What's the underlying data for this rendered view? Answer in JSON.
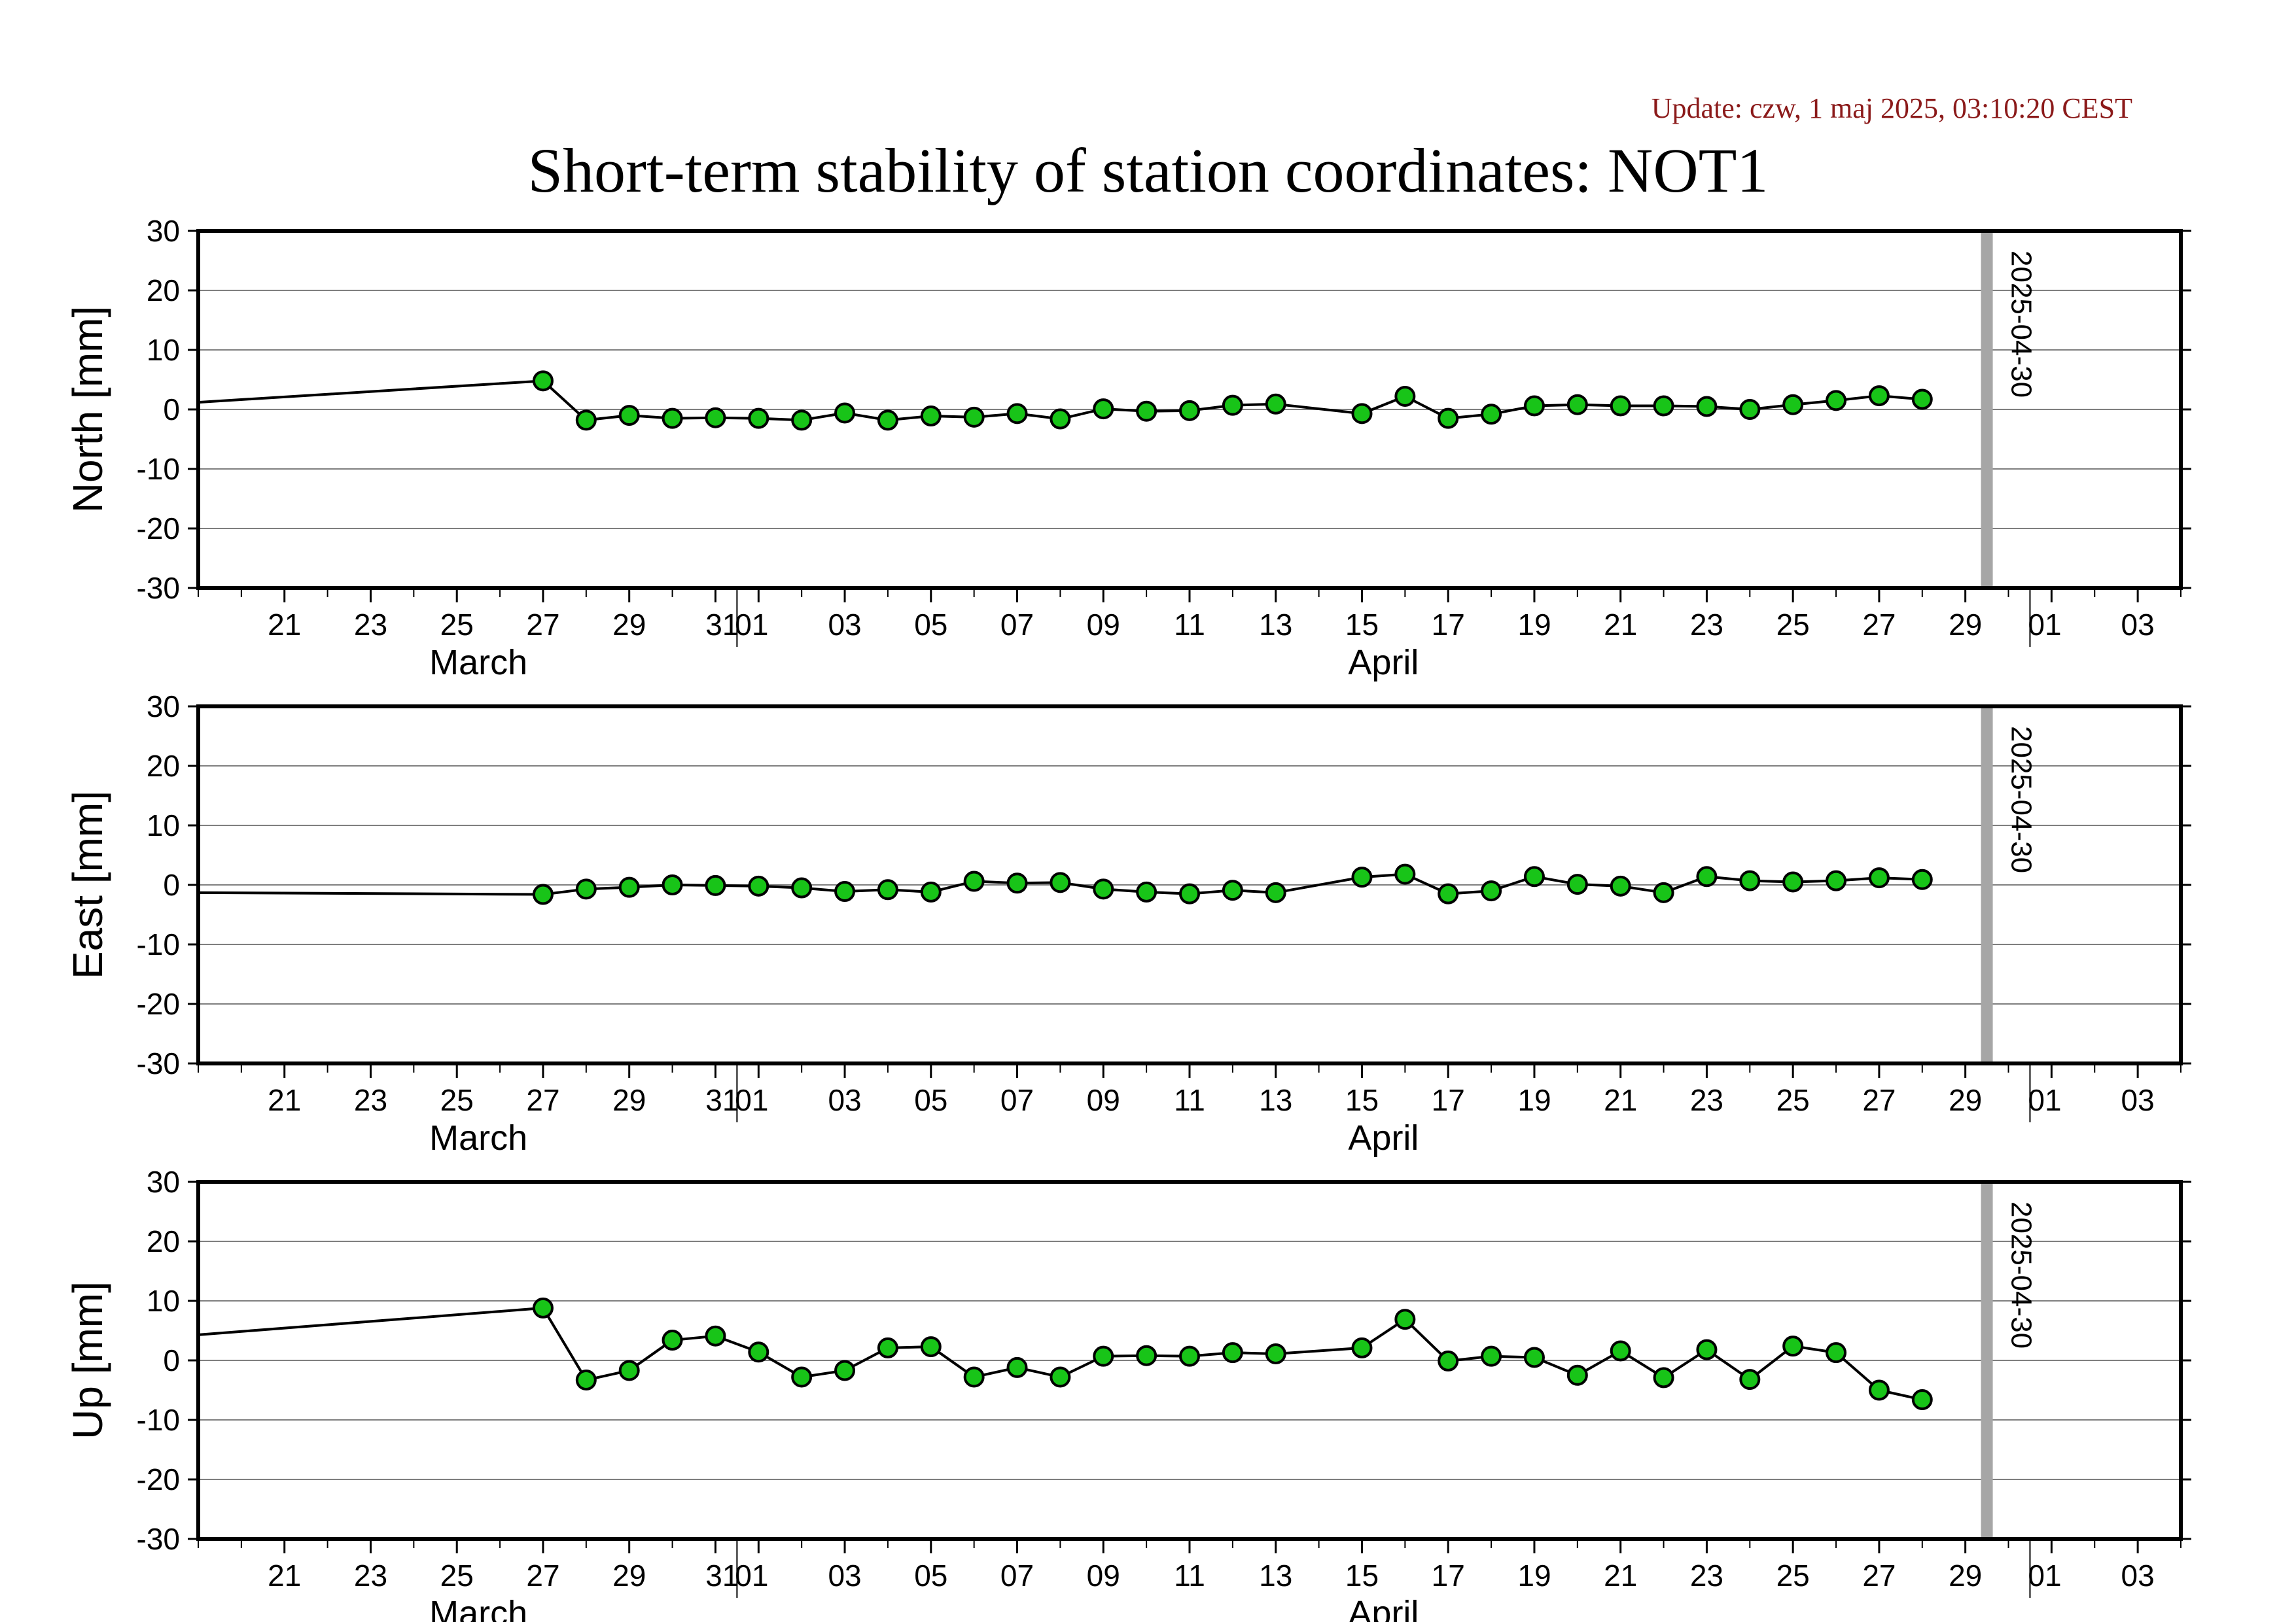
{
  "header": {
    "update": "Update: czw, 1 maj 2025, 03:10:20 CEST",
    "title": "Short-term stability of station coordinates: NOT1"
  },
  "colors": {
    "marker_fill": "#18c418",
    "marker_stroke": "#000000",
    "line": "#000000",
    "grid": "#7f7f7f",
    "date_marker": "#a6a6a6"
  },
  "chart_data": [
    {
      "type": "line",
      "ylabel": "North [mm]",
      "ylim": [
        -30,
        30
      ],
      "yticks": [
        "30",
        "20",
        "10",
        "0",
        "-10",
        "-20",
        "-30"
      ],
      "xrange": [
        "2025-03-19",
        "2025-05-04"
      ],
      "xtick_labels": [
        "21",
        "23",
        "25",
        "27",
        "29",
        "31",
        "01",
        "03",
        "05",
        "07",
        "09",
        "11",
        "13",
        "15",
        "17",
        "19",
        "21",
        "23",
        "25",
        "27",
        "29",
        "01",
        "03"
      ],
      "month_labels": [
        "March",
        "April"
      ],
      "grid": true,
      "marker_label": "2025-04-30",
      "line_start": {
        "x": "2025-03-19",
        "y": 1.2
      },
      "x": [
        "2025-03-27",
        "2025-03-28",
        "2025-03-29",
        "2025-03-30",
        "2025-03-31",
        "2025-04-01",
        "2025-04-02",
        "2025-04-03",
        "2025-04-04",
        "2025-04-05",
        "2025-04-06",
        "2025-04-07",
        "2025-04-08",
        "2025-04-09",
        "2025-04-10",
        "2025-04-11",
        "2025-04-12",
        "2025-04-13",
        "2025-04-15",
        "2025-04-16",
        "2025-04-17",
        "2025-04-18",
        "2025-04-19",
        "2025-04-20",
        "2025-04-21",
        "2025-04-22",
        "2025-04-23",
        "2025-04-24",
        "2025-04-25",
        "2025-04-26",
        "2025-04-27",
        "2025-04-28"
      ],
      "y": [
        4.8,
        -1.8,
        -1.0,
        -1.5,
        -1.4,
        -1.5,
        -1.8,
        -0.6,
        -1.8,
        -1.1,
        -1.3,
        -0.7,
        -1.6,
        0.1,
        -0.3,
        -0.2,
        0.7,
        0.9,
        -0.7,
        2.2,
        -1.5,
        -0.8,
        0.6,
        0.8,
        0.6,
        0.6,
        0.5,
        0.0,
        0.8,
        1.5,
        2.3,
        1.7
      ]
    },
    {
      "type": "line",
      "ylabel": "East [mm]",
      "ylim": [
        -30,
        30
      ],
      "yticks": [
        "30",
        "20",
        "10",
        "0",
        "-10",
        "-20",
        "-30"
      ],
      "xrange": [
        "2025-03-19",
        "2025-05-04"
      ],
      "xtick_labels": [
        "21",
        "23",
        "25",
        "27",
        "29",
        "31",
        "01",
        "03",
        "05",
        "07",
        "09",
        "11",
        "13",
        "15",
        "17",
        "19",
        "21",
        "23",
        "25",
        "27",
        "29",
        "01",
        "03"
      ],
      "month_labels": [
        "March",
        "April"
      ],
      "grid": true,
      "marker_label": "2025-04-30",
      "line_start": {
        "x": "2025-03-19",
        "y": -1.3
      },
      "x": [
        "2025-03-27",
        "2025-03-28",
        "2025-03-29",
        "2025-03-30",
        "2025-03-31",
        "2025-04-01",
        "2025-04-02",
        "2025-04-03",
        "2025-04-04",
        "2025-04-05",
        "2025-04-06",
        "2025-04-07",
        "2025-04-08",
        "2025-04-09",
        "2025-04-10",
        "2025-04-11",
        "2025-04-12",
        "2025-04-13",
        "2025-04-15",
        "2025-04-16",
        "2025-04-17",
        "2025-04-18",
        "2025-04-19",
        "2025-04-20",
        "2025-04-21",
        "2025-04-22",
        "2025-04-23",
        "2025-04-24",
        "2025-04-25",
        "2025-04-26",
        "2025-04-27",
        "2025-04-28"
      ],
      "y": [
        -1.6,
        -0.7,
        -0.4,
        0.0,
        -0.1,
        -0.2,
        -0.5,
        -1.1,
        -0.8,
        -1.2,
        0.6,
        0.3,
        0.4,
        -0.7,
        -1.2,
        -1.5,
        -0.9,
        -1.3,
        1.3,
        1.8,
        -1.5,
        -1.0,
        1.4,
        0.1,
        -0.2,
        -1.3,
        1.4,
        0.7,
        0.5,
        0.7,
        1.2,
        0.9
      ]
    },
    {
      "type": "line",
      "ylabel": "Up [mm]",
      "ylim": [
        -30,
        30
      ],
      "yticks": [
        "30",
        "20",
        "10",
        "0",
        "-10",
        "-20",
        "-30"
      ],
      "xrange": [
        "2025-03-19",
        "2025-05-04"
      ],
      "xtick_labels": [
        "21",
        "23",
        "25",
        "27",
        "29",
        "31",
        "01",
        "03",
        "05",
        "07",
        "09",
        "11",
        "13",
        "15",
        "17",
        "19",
        "21",
        "23",
        "25",
        "27",
        "29",
        "01",
        "03"
      ],
      "month_labels": [
        "March",
        "April"
      ],
      "grid": true,
      "marker_label": "2025-04-30",
      "line_start": {
        "x": "2025-03-19",
        "y": 4.3
      },
      "x": [
        "2025-03-27",
        "2025-03-28",
        "2025-03-29",
        "2025-03-30",
        "2025-03-31",
        "2025-04-01",
        "2025-04-02",
        "2025-04-03",
        "2025-04-04",
        "2025-04-05",
        "2025-04-06",
        "2025-04-07",
        "2025-04-08",
        "2025-04-09",
        "2025-04-10",
        "2025-04-11",
        "2025-04-12",
        "2025-04-13",
        "2025-04-15",
        "2025-04-16",
        "2025-04-17",
        "2025-04-18",
        "2025-04-19",
        "2025-04-20",
        "2025-04-21",
        "2025-04-22",
        "2025-04-23",
        "2025-04-24",
        "2025-04-25",
        "2025-04-26",
        "2025-04-27",
        "2025-04-28"
      ],
      "y": [
        8.8,
        -3.3,
        -1.7,
        3.4,
        4.1,
        1.4,
        -2.8,
        -1.7,
        2.1,
        2.3,
        -2.8,
        -1.2,
        -2.8,
        0.7,
        0.8,
        0.7,
        1.3,
        1.1,
        2.1,
        6.9,
        -0.1,
        0.7,
        0.5,
        -2.5,
        1.6,
        -2.9,
        1.8,
        -3.2,
        2.4,
        1.3,
        -5.0,
        -6.6
      ]
    }
  ]
}
